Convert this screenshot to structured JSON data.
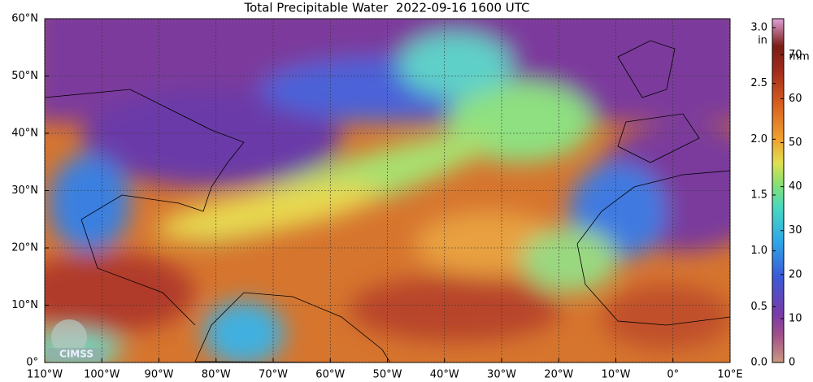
{
  "title": "Total Precipitable Water  2022-09-16 1600 UTC",
  "map": {
    "lonlim": [
      -110,
      10
    ],
    "latlim": [
      0,
      60
    ],
    "grid": true,
    "lonticks": [
      {
        "value": -110,
        "label": "110°W"
      },
      {
        "value": -100,
        "label": "100°W"
      },
      {
        "value": -90,
        "label": "90°W"
      },
      {
        "value": -80,
        "label": "80°W"
      },
      {
        "value": -70,
        "label": "70°W"
      },
      {
        "value": -60,
        "label": "60°W"
      },
      {
        "value": -50,
        "label": "50°W"
      },
      {
        "value": -40,
        "label": "40°W"
      },
      {
        "value": -30,
        "label": "30°W"
      },
      {
        "value": -20,
        "label": "20°W"
      },
      {
        "value": -10,
        "label": "10°W"
      },
      {
        "value": 0,
        "label": "0°"
      },
      {
        "value": 10,
        "label": "10°E"
      }
    ],
    "latticks": [
      {
        "value": 0,
        "label": "0°"
      },
      {
        "value": 10,
        "label": "10°N"
      },
      {
        "value": 20,
        "label": "20°N"
      },
      {
        "value": 30,
        "label": "30°N"
      },
      {
        "value": 40,
        "label": "40°N"
      },
      {
        "value": 50,
        "label": "50°N"
      },
      {
        "value": 60,
        "label": "60°N"
      }
    ]
  },
  "colorbar": {
    "in_label": "in",
    "mm_label": "mm",
    "in_lim": [
      0,
      3.08
    ],
    "mm_lim": [
      0,
      78.2
    ],
    "in_ticks": [
      {
        "value": 0,
        "label": "0.0"
      },
      0.5,
      {
        "value": 1,
        "label": "1.0"
      },
      1.5,
      {
        "value": 2,
        "label": "2.0"
      },
      2.5,
      {
        "value": 3,
        "label": "3.0"
      }
    ],
    "mm_ticks": [
      0,
      10,
      20,
      30,
      40,
      50,
      60,
      70
    ]
  },
  "logo": "CIMSS"
}
